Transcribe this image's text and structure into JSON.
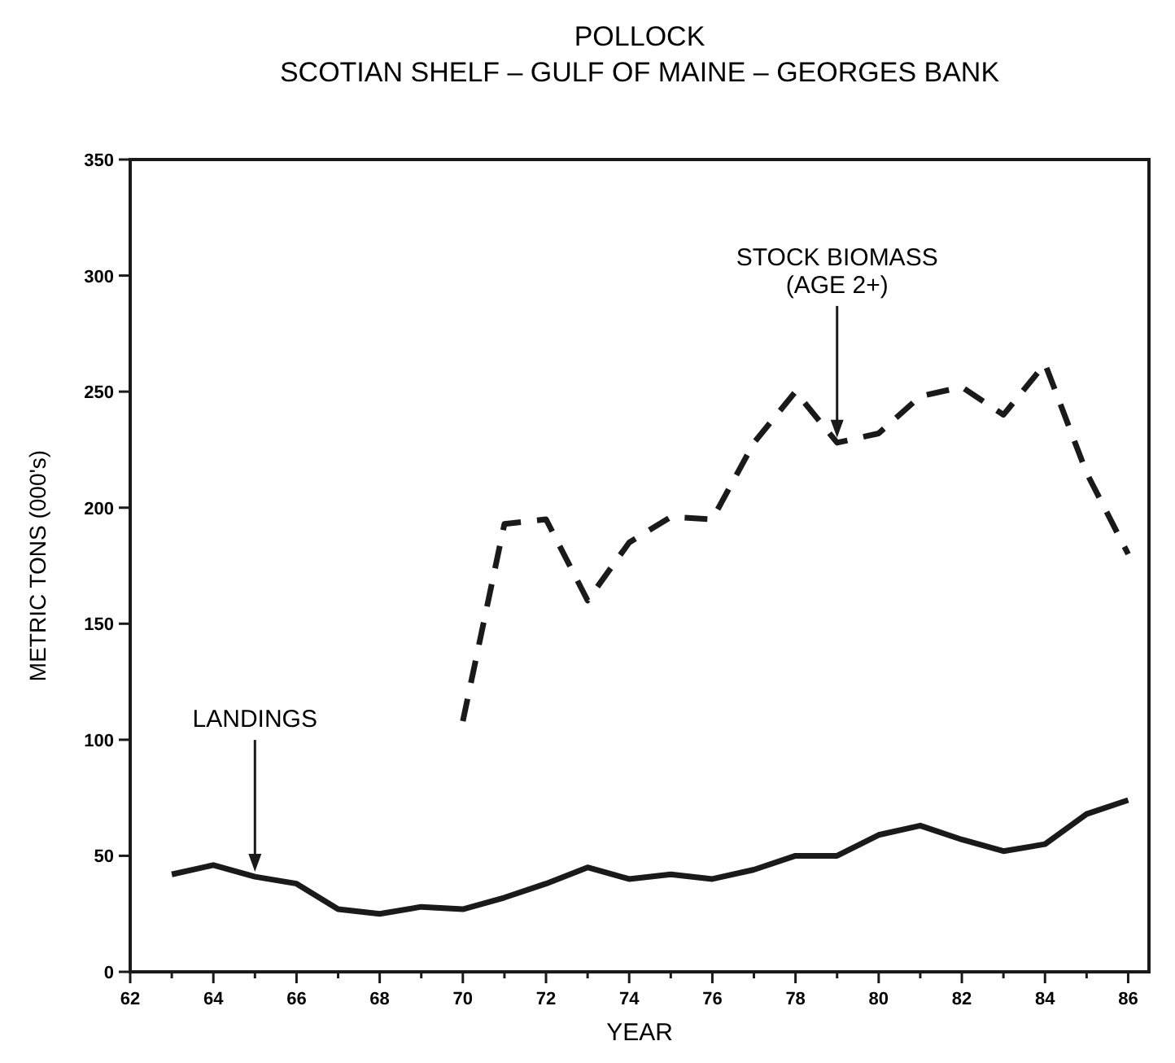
{
  "chart_data": {
    "type": "line",
    "title": "POLLOCK",
    "subtitle": "SCOTIAN SHELF – GULF OF MAINE – GEORGES BANK",
    "xlabel": "YEAR",
    "ylabel": "METRIC TONS (000's)",
    "xlim": [
      62,
      86.5
    ],
    "ylim": [
      0,
      350
    ],
    "xticks": [
      62,
      {
        "value": 63,
        "label": null
      },
      64,
      {
        "value": 65,
        "label": null
      },
      66,
      {
        "value": 67,
        "label": null
      },
      68,
      {
        "value": 69,
        "label": null
      },
      70,
      {
        "value": 71,
        "label": null
      },
      72,
      {
        "value": 73,
        "label": null
      },
      74,
      {
        "value": 75,
        "label": null
      },
      76,
      {
        "value": 77,
        "label": null
      },
      78,
      {
        "value": 79,
        "label": null
      },
      80,
      {
        "value": 81,
        "label": null
      },
      82,
      {
        "value": 83,
        "label": null
      },
      84,
      {
        "value": 85,
        "label": null
      },
      86
    ],
    "yticks": [
      0,
      50,
      100,
      150,
      200,
      250,
      300,
      350
    ],
    "grid": false,
    "marker": "none",
    "series": [
      {
        "color": "#1a1a1a",
        "line_style": "solid",
        "x": [
          63,
          64,
          65,
          66,
          67,
          68,
          69,
          70,
          71,
          72,
          73,
          74,
          75,
          76,
          77,
          78,
          79,
          80,
          81,
          82,
          83,
          84,
          85,
          86
        ],
        "values": [
          42,
          46,
          41,
          38,
          27,
          25,
          28,
          27,
          32,
          38,
          45,
          40,
          42,
          40,
          44,
          50,
          50,
          59,
          63,
          57,
          52,
          55,
          68,
          74
        ]
      },
      {
        "color": "#1a1a1a",
        "line_style": "dashed",
        "x": [
          70,
          71,
          72,
          73,
          74,
          75,
          76,
          77,
          78,
          79,
          80,
          81,
          82,
          83,
          84,
          85,
          86
        ],
        "values": [
          108,
          193,
          195,
          160,
          185,
          196,
          195,
          228,
          250,
          228,
          232,
          248,
          252,
          240,
          262,
          215,
          180
        ]
      }
    ],
    "annotations": [
      {
        "text": "LANDINGS",
        "x": 65,
        "y": 41
      },
      {
        "text": "STOCK BIOMASS\n(AGE 2+)",
        "x": 79,
        "y": 228
      }
    ]
  }
}
